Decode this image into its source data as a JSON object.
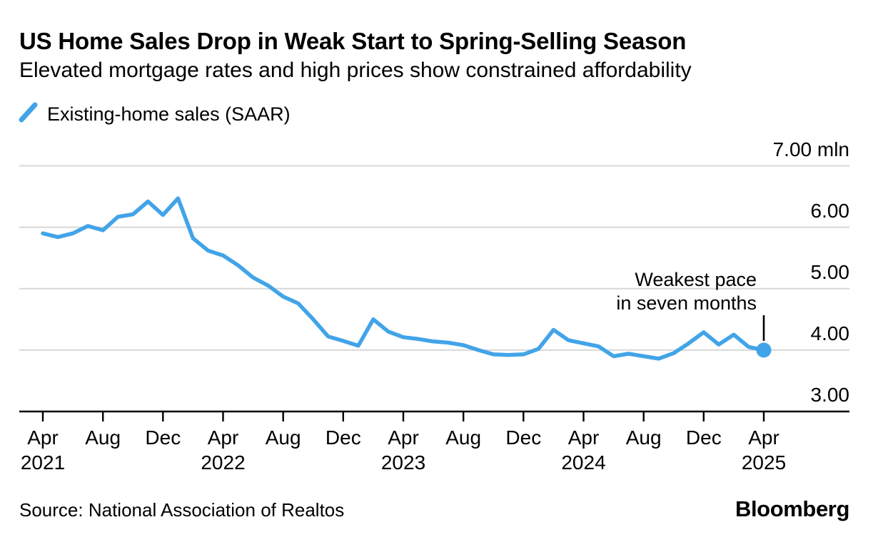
{
  "header": {
    "title": "US Home Sales Drop in Weak Start to Spring-Selling Season",
    "subtitle": "Elevated mortgage rates and high prices show constrained affordability"
  },
  "legend": {
    "label": "Existing-home sales (SAAR)",
    "mark_icon": "blue-slash-line"
  },
  "annotation": {
    "line1": "Weakest pace",
    "line2": "in seven months"
  },
  "footer": {
    "source": "Source: National Association of Realtos",
    "brand": "Bloomberg"
  },
  "colors": {
    "line": "#42A4E8",
    "marker": "#42A4E8",
    "grid": "#D8D8D8",
    "axis": "#000000",
    "text": "#000000",
    "background": "#FFFFFF"
  },
  "chart_data": {
    "type": "line",
    "title": "US Home Sales Drop in Weak Start to Spring-Selling Season",
    "unit": "mln",
    "grid": "horizontal",
    "legend_position": "top-left",
    "months": [
      "Apr 2021",
      "May 2021",
      "Jun 2021",
      "Jul 2021",
      "Aug 2021",
      "Sep 2021",
      "Oct 2021",
      "Nov 2021",
      "Dec 2021",
      "Jan 2022",
      "Feb 2022",
      "Mar 2022",
      "Apr 2022",
      "May 2022",
      "Jun 2022",
      "Jul 2022",
      "Aug 2022",
      "Sep 2022",
      "Oct 2022",
      "Nov 2022",
      "Dec 2022",
      "Jan 2023",
      "Feb 2023",
      "Mar 2023",
      "Apr 2023",
      "May 2023",
      "Jun 2023",
      "Jul 2023",
      "Aug 2023",
      "Sep 2023",
      "Oct 2023",
      "Nov 2023",
      "Dec 2023",
      "Jan 2024",
      "Feb 2024",
      "Mar 2024",
      "Apr 2024",
      "May 2024",
      "Jun 2024",
      "Jul 2024",
      "Aug 2024",
      "Sep 2024",
      "Oct 2024",
      "Nov 2024",
      "Dec 2024",
      "Jan 2025",
      "Feb 2025",
      "Mar 2025",
      "Apr 2025"
    ],
    "series": [
      {
        "name": "Existing-home sales (SAAR)",
        "values": [
          5.9,
          5.84,
          5.9,
          6.02,
          5.95,
          6.17,
          6.21,
          6.42,
          6.2,
          6.47,
          5.82,
          5.62,
          5.54,
          5.38,
          5.18,
          5.05,
          4.87,
          4.76,
          4.5,
          4.22,
          4.15,
          4.07,
          4.5,
          4.3,
          4.21,
          4.18,
          4.14,
          4.12,
          4.08,
          4.0,
          3.93,
          3.92,
          3.93,
          4.02,
          4.33,
          4.16,
          4.11,
          4.06,
          3.9,
          3.94,
          3.9,
          3.86,
          3.95,
          4.11,
          4.29,
          4.09,
          4.25,
          4.05,
          4.0
        ]
      }
    ],
    "last_point": {
      "month": "Apr 2025",
      "value": 4.0,
      "marker": true
    },
    "y_axis": {
      "range": [
        3.0,
        7.0
      ],
      "ticks": [
        3,
        4,
        5,
        6,
        7
      ],
      "tick_labels": [
        "3.00",
        "4.00",
        "5.00",
        "6.00",
        "7.00 mln"
      ],
      "side": "right"
    },
    "x_axis": {
      "ticks": [
        {
          "month_index": 0,
          "label": "Apr",
          "year": "2021"
        },
        {
          "month_index": 4,
          "label": "Aug",
          "year": ""
        },
        {
          "month_index": 8,
          "label": "Dec",
          "year": ""
        },
        {
          "month_index": 12,
          "label": "Apr",
          "year": "2022"
        },
        {
          "month_index": 16,
          "label": "Aug",
          "year": ""
        },
        {
          "month_index": 20,
          "label": "Dec",
          "year": ""
        },
        {
          "month_index": 24,
          "label": "Apr",
          "year": "2023"
        },
        {
          "month_index": 28,
          "label": "Aug",
          "year": ""
        },
        {
          "month_index": 32,
          "label": "Dec",
          "year": ""
        },
        {
          "month_index": 36,
          "label": "Apr",
          "year": "2024"
        },
        {
          "month_index": 40,
          "label": "Aug",
          "year": ""
        },
        {
          "month_index": 44,
          "label": "Dec",
          "year": ""
        },
        {
          "month_index": 48,
          "label": "Apr",
          "year": "2025"
        }
      ]
    }
  }
}
